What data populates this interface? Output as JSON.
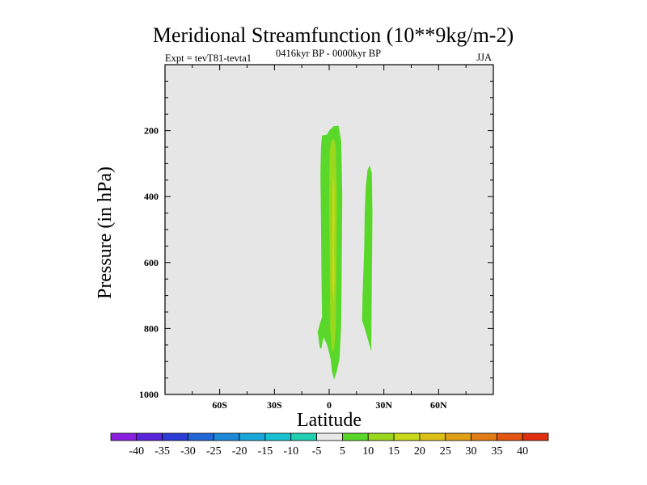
{
  "chart_data": {
    "type": "heatmap",
    "plot_style": "filled contour (latitude-pressure cross section)",
    "title": "Meridional Streamfunction (10**9kg/m-2)",
    "left_string": "Expt = tevT81-tevta1",
    "center_string": "0416kyr BP - 0000kyr BP",
    "right_string": "JJA",
    "xlabel": "Latitude",
    "ylabel": "Pressure (in hPa)",
    "xlim": [
      -90,
      90
    ],
    "ylim": [
      1000,
      0
    ],
    "x_ticks": [
      {
        "value": -60,
        "label": "60S"
      },
      {
        "value": -30,
        "label": "30S"
      },
      {
        "value": 0,
        "label": "0"
      },
      {
        "value": 30,
        "label": "30N"
      },
      {
        "value": 60,
        "label": "60N"
      }
    ],
    "y_ticks": [
      {
        "value": 200,
        "label": "200"
      },
      {
        "value": 400,
        "label": "400"
      },
      {
        "value": 600,
        "label": "600"
      },
      {
        "value": 800,
        "label": "800"
      },
      {
        "value": 1000,
        "label": "1000"
      }
    ],
    "background_color": "#e6e6e6",
    "contour_levels": [
      -40,
      -35,
      -30,
      -25,
      -20,
      -15,
      -10,
      -5,
      5,
      10,
      15,
      20,
      25,
      30,
      35,
      40
    ],
    "colorbar_colors": [
      "#8a20df",
      "#5a24dc",
      "#2c3cd8",
      "#2066d6",
      "#1c8ad8",
      "#1aa8da",
      "#18c2d2",
      "#22cfb2",
      "#e8e8e8",
      "#5ad82a",
      "#9ad81e",
      "#c8d81a",
      "#dcc018",
      "#e0a016",
      "#e27c14",
      "#e45412",
      "#e02e10"
    ],
    "contours": [
      {
        "level": "5 to 10",
        "color": "#5ad82a",
        "points": [
          [
            -5.1,
            860
          ],
          [
            -6.3,
            810
          ],
          [
            -4.8,
            780
          ],
          [
            -3.9,
            765
          ],
          [
            -4.2,
            650
          ],
          [
            -4.5,
            480
          ],
          [
            -4.8,
            330
          ],
          [
            -4.5,
            250
          ],
          [
            -3.9,
            215
          ],
          [
            -1.2,
            212
          ],
          [
            0,
            200
          ],
          [
            2.4,
            187
          ],
          [
            5.1,
            185
          ],
          [
            6.6,
            230
          ],
          [
            7.2,
            400
          ],
          [
            6.9,
            600
          ],
          [
            6.6,
            790
          ],
          [
            5.7,
            890
          ],
          [
            4.2,
            930
          ],
          [
            2.7,
            955
          ],
          [
            1.5,
            930
          ],
          [
            0.9,
            895
          ],
          [
            -0.6,
            860
          ],
          [
            -1.5,
            845
          ],
          [
            -2.7,
            830
          ],
          [
            -3.3,
            830
          ],
          [
            -4.2,
            860
          ],
          [
            -5.1,
            860
          ]
        ]
      },
      {
        "level": "5 to 10",
        "color": "#5ad82a",
        "points": [
          [
            20.1,
            370
          ],
          [
            21.0,
            320
          ],
          [
            22.2,
            305
          ],
          [
            23.4,
            330
          ],
          [
            23.7,
            450
          ],
          [
            23.4,
            650
          ],
          [
            23.1,
            870
          ],
          [
            21.6,
            840
          ],
          [
            19.5,
            800
          ],
          [
            18.0,
            775
          ],
          [
            18.3,
            700
          ],
          [
            19.2,
            560
          ],
          [
            19.5,
            450
          ],
          [
            20.1,
            370
          ]
        ]
      },
      {
        "level": "10 to 15",
        "color": "#9ad81e",
        "points": [
          [
            0.3,
            260
          ],
          [
            1.2,
            232
          ],
          [
            2.7,
            225
          ],
          [
            3.6,
            250
          ],
          [
            4.2,
            400
          ],
          [
            4.0,
            600
          ],
          [
            3.6,
            800
          ],
          [
            2.7,
            860
          ],
          [
            1.5,
            870
          ],
          [
            0.6,
            800
          ],
          [
            0.3,
            600
          ],
          [
            0.0,
            400
          ],
          [
            0.3,
            260
          ]
        ]
      },
      {
        "level": "15 to 20",
        "color": "#c8d81a",
        "points": [
          [
            2.4,
            330
          ],
          [
            3.0,
            380
          ],
          [
            3.0,
            470
          ],
          [
            2.7,
            570
          ],
          [
            3.0,
            650
          ],
          [
            2.4,
            720
          ],
          [
            1.6,
            680
          ],
          [
            1.6,
            560
          ],
          [
            1.8,
            450
          ],
          [
            2.1,
            360
          ],
          [
            2.4,
            330
          ]
        ]
      }
    ]
  }
}
